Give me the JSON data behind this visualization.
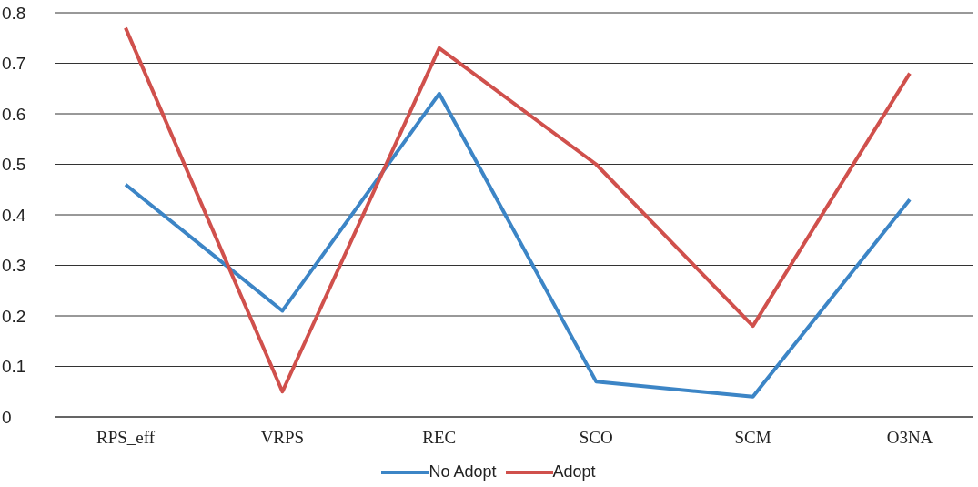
{
  "chart_data": {
    "type": "line",
    "categories": [
      "RPS_eff",
      "VRPS",
      "REC",
      "SCO",
      "SCM",
      "O3NA"
    ],
    "series": [
      {
        "name": "No Adopt",
        "color": "#3c85c6",
        "values": [
          0.46,
          0.21,
          0.64,
          0.07,
          0.04,
          0.43
        ]
      },
      {
        "name": "Adopt",
        "color": "#d0504c",
        "values": [
          0.77,
          0.05,
          0.73,
          0.5,
          0.18,
          0.68
        ]
      }
    ],
    "ylim": [
      0,
      0.8
    ],
    "yticks": [
      0,
      0.1,
      0.2,
      0.3,
      0.4,
      0.5,
      0.6,
      0.7,
      0.8
    ],
    "grid": "y",
    "legend": "bottom",
    "marker": "none",
    "line_style": "solid"
  }
}
